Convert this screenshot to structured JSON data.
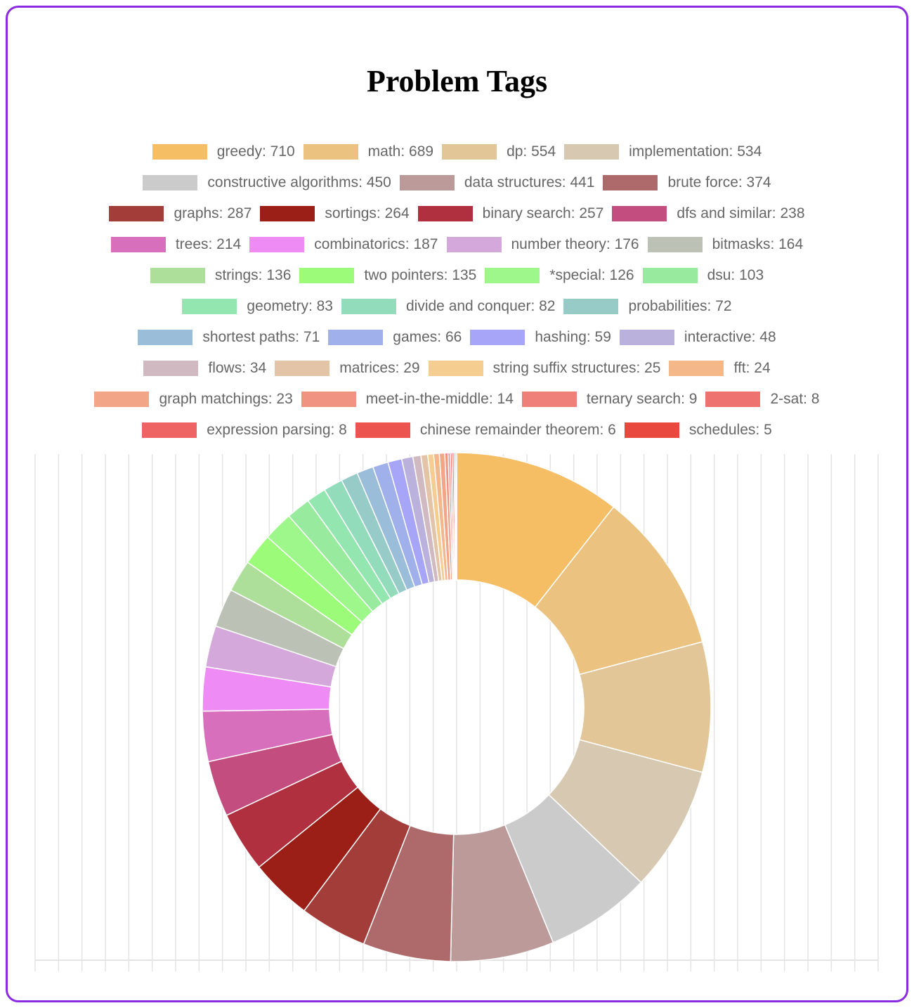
{
  "chart_data": {
    "type": "pie",
    "title": "Problem Tags",
    "legend_position": "top",
    "grid": true,
    "categories": [
      "greedy",
      "math",
      "dp",
      "implementation",
      "constructive algorithms",
      "data structures",
      "brute force",
      "graphs",
      "sortings",
      "binary search",
      "dfs and similar",
      "trees",
      "combinatorics",
      "number theory",
      "bitmasks",
      "strings",
      "two pointers",
      "*special",
      "dsu",
      "geometry",
      "divide and conquer",
      "probabilities",
      "shortest paths",
      "games",
      "hashing",
      "interactive",
      "flows",
      "matrices",
      "string suffix structures",
      "fft",
      "graph matchings",
      "meet-in-the-middle",
      "ternary search",
      "2-sat",
      "expression parsing",
      "chinese remainder theorem",
      "schedules"
    ],
    "values": [
      710,
      689,
      554,
      534,
      450,
      441,
      374,
      287,
      264,
      257,
      238,
      214,
      187,
      176,
      164,
      136,
      135,
      126,
      103,
      83,
      82,
      72,
      71,
      66,
      59,
      48,
      34,
      29,
      25,
      24,
      23,
      14,
      9,
      8,
      8,
      6,
      5
    ],
    "legend_labels": [
      "greedy: 710",
      "math: 689",
      "dp: 554",
      "implementation: 534",
      "constructive algorithms: 450",
      "data structures: 441",
      "brute force: 374",
      "graphs: 287",
      "sortings: 264",
      "binary search: 257",
      "dfs and similar: 238",
      "trees: 214",
      "combinatorics: 187",
      "number theory: 176",
      "bitmasks: 164",
      "strings: 136",
      "two pointers: 135",
      "*special: 126",
      "dsu: 103",
      "geometry: 83",
      "divide and conquer: 82",
      "probabilities: 72",
      "shortest paths: 71",
      "games: 66",
      "hashing: 59",
      "interactive: 48",
      "flows: 34",
      "matrices: 29",
      "string suffix structures: 25",
      "fft: 24",
      "graph matchings: 23",
      "meet-in-the-middle: 14",
      "ternary search: 9",
      "2-sat: 8",
      "expression parsing: 8",
      "chinese remainder theorem: 6",
      "schedules: 5"
    ],
    "colors": [
      "#f5be64",
      "#ebc27f",
      "#e2c698",
      "#d7c8b1",
      "#cbcbcb",
      "#bc9a9a",
      "#ae6a6a",
      "#a33d3a",
      "#9b1f16",
      "#b03040",
      "#c34d7e",
      "#d76fbd",
      "#ee8bf5",
      "#d4a8da",
      "#bcc1b6",
      "#addf9b",
      "#9cfb78",
      "#9ef78a",
      "#98eb9e",
      "#93e6af",
      "#93dcbb",
      "#96cbc8",
      "#9abdd9",
      "#a0b0ea",
      "#a7a5f7",
      "#bab2dc",
      "#d0b9c0",
      "#e3c4a6",
      "#f6cd91",
      "#f3b789",
      "#f2a587",
      "#f09380",
      "#ef8079",
      "#ee7270",
      "#ee6464",
      "#ec544f",
      "#e9483f"
    ],
    "legend_rows": [
      [
        0,
        1,
        2,
        3
      ],
      [
        4,
        5,
        6
      ],
      [
        7,
        8,
        9,
        10
      ],
      [
        11,
        12,
        13,
        14
      ],
      [
        15,
        16,
        17,
        18
      ],
      [
        19,
        20,
        21
      ],
      [
        22,
        23,
        24,
        25
      ],
      [
        26,
        27,
        28,
        29
      ],
      [
        30,
        31,
        32,
        33
      ],
      [
        34,
        35,
        36
      ]
    ]
  }
}
